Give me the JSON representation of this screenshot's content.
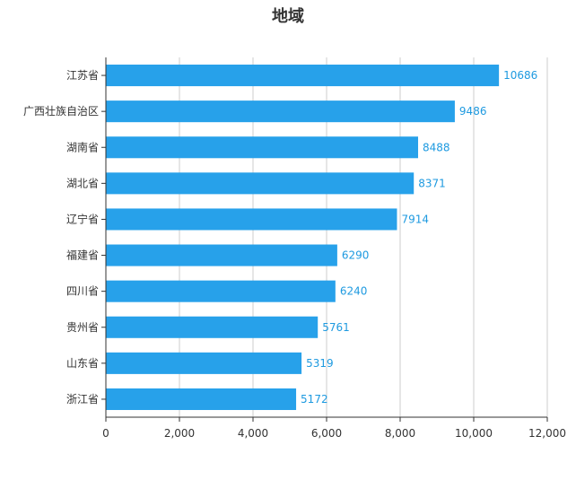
{
  "chart_data": {
    "type": "bar",
    "orientation": "horizontal",
    "title": "地域",
    "categories": [
      "江苏省",
      "广西壮族自治区",
      "湖南省",
      "湖北省",
      "辽宁省",
      "福建省",
      "四川省",
      "贵州省",
      "山东省",
      "浙江省"
    ],
    "values": [
      10686,
      9486,
      8488,
      8371,
      7914,
      6290,
      6240,
      5761,
      5319,
      5172
    ],
    "xlim": [
      0,
      12000
    ],
    "x_ticks": [
      0,
      2000,
      4000,
      6000,
      8000,
      10000,
      12000
    ],
    "x_tick_labels": [
      "0",
      "2,000",
      "4,000",
      "6,000",
      "8,000",
      "10,000",
      "12,000"
    ],
    "xlabel": "",
    "ylabel": "",
    "grid": "vertical",
    "legend": "none",
    "colors": {
      "bar": "#27a1ea",
      "data_label": "#1e9ae0",
      "grid": "#cccccc",
      "axis": "#333333"
    }
  }
}
